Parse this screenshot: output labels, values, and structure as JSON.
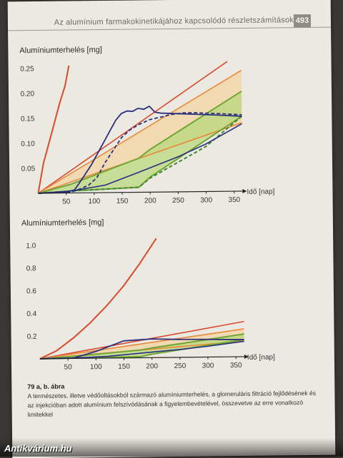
{
  "running_head": {
    "title": "Az alumínium farmakokinetikájához kapcsolódó részletszámítások",
    "page_number": "493"
  },
  "chart_data": [
    {
      "type": "line",
      "ylabel": "Alumíniumterhelés [mg]",
      "xlabel": "Idő [nap]",
      "xlim": [
        0,
        365
      ],
      "ylim": [
        0,
        0.25
      ],
      "xticks": [
        50,
        100,
        150,
        200,
        250,
        300,
        350
      ],
      "yticks": [
        0.05,
        0.1,
        0.15,
        0.2,
        0.25
      ],
      "ytick_labels": [
        "0.05",
        "0.10",
        "0.15",
        "0.20",
        "0.25"
      ],
      "bands": [
        {
          "color": "#f3d3a2",
          "upper": [
            [
              0,
              0
            ],
            [
              365,
              0.242
            ]
          ],
          "lower": [
            [
              0,
              0
            ],
            [
              365,
              0.137
            ]
          ]
        },
        {
          "color": "#b9d77e",
          "upper": [
            [
              0,
              0
            ],
            [
              60,
              0.018
            ],
            [
              180,
              0.068
            ],
            [
              200,
              0.085
            ],
            [
              365,
              0.2
            ]
          ],
          "lower": [
            [
              0,
              0
            ],
            [
              60,
              0.004
            ],
            [
              180,
              0.01
            ],
            [
              200,
              0.03
            ],
            [
              365,
              0.15
            ]
          ]
        }
      ],
      "series": [
        {
          "color": "#d94a2b",
          "width": 2,
          "dash": "",
          "x": [
            0,
            10,
            20,
            30,
            40,
            50,
            57
          ],
          "y": [
            0,
            0.06,
            0.1,
            0.14,
            0.18,
            0.215,
            0.255
          ]
        },
        {
          "color": "#d94a2b",
          "width": 1.6,
          "dash": "",
          "x": [
            0,
            340
          ],
          "y": [
            0,
            0.26
          ]
        },
        {
          "color": "#e8893a",
          "width": 1.6,
          "dash": "",
          "x": [
            0,
            365
          ],
          "y": [
            0,
            0.242
          ]
        },
        {
          "color": "#e8893a",
          "width": 1.6,
          "dash": "",
          "x": [
            0,
            365
          ],
          "y": [
            0,
            0.137
          ]
        },
        {
          "color": "#6fa532",
          "width": 2,
          "dash": "",
          "x": [
            0,
            60,
            180,
            200,
            365
          ],
          "y": [
            0,
            0.018,
            0.068,
            0.085,
            0.2
          ]
        },
        {
          "color": "#6fa532",
          "width": 2,
          "dash": "",
          "x": [
            0,
            60,
            180,
            200,
            365
          ],
          "y": [
            0,
            0.004,
            0.01,
            0.03,
            0.15
          ]
        },
        {
          "color": "#3b8a2a",
          "width": 2,
          "dash": "5,3",
          "x": [
            0,
            60,
            180,
            200,
            300,
            365
          ],
          "y": [
            0,
            0.004,
            0.01,
            0.028,
            0.09,
            0.15
          ]
        },
        {
          "color": "#2b2f7e",
          "width": 1.8,
          "dash": "",
          "x": [
            0,
            50,
            65,
            80,
            95,
            110,
            125,
            140,
            150,
            160,
            170,
            180,
            190,
            200,
            210,
            220,
            240,
            280,
            320,
            365
          ],
          "y": [
            0,
            0.002,
            0.006,
            0.03,
            0.055,
            0.085,
            0.115,
            0.145,
            0.158,
            0.163,
            0.162,
            0.168,
            0.166,
            0.172,
            0.16,
            0.158,
            0.157,
            0.155,
            0.153,
            0.15
          ]
        },
        {
          "color": "#2b2f7e",
          "width": 1.8,
          "dash": "5,3",
          "x": [
            0,
            60,
            75,
            90,
            105,
            120,
            135,
            150,
            165,
            180,
            200,
            220,
            240,
            260,
            280,
            300,
            320,
            365
          ],
          "y": [
            0,
            0.002,
            0.008,
            0.015,
            0.03,
            0.06,
            0.085,
            0.11,
            0.125,
            0.135,
            0.145,
            0.15,
            0.155,
            0.158,
            0.158,
            0.157,
            0.156,
            0.153
          ]
        },
        {
          "color": "#2b2f7e",
          "width": 1.6,
          "dash": "",
          "x": [
            0,
            60,
            120,
            180,
            250,
            300,
            365
          ],
          "y": [
            0,
            0.004,
            0.015,
            0.04,
            0.07,
            0.095,
            0.135
          ]
        }
      ]
    },
    {
      "type": "line",
      "ylabel": "Alumíniumterhelés [mg]",
      "xlabel": "Idő [nap]",
      "xlim": [
        0,
        365
      ],
      "ylim": [
        0,
        1.05
      ],
      "xticks": [
        50,
        100,
        150,
        200,
        250,
        300,
        350
      ],
      "yticks": [
        0.2,
        0.4,
        0.6,
        0.8,
        1.0
      ],
      "ytick_labels": [
        "0.2",
        "0.4",
        "0.6",
        "0.8",
        "1.0"
      ],
      "bands": [
        {
          "color": "#f3d3a2",
          "upper": [
            [
              0,
              0
            ],
            [
              365,
              0.245
            ]
          ],
          "lower": [
            [
              0,
              0
            ],
            [
              365,
              0.137
            ]
          ]
        },
        {
          "color": "#b9d77e",
          "upper": [
            [
              0,
              0
            ],
            [
              60,
              0.018
            ],
            [
              180,
              0.068
            ],
            [
              200,
              0.085
            ],
            [
              365,
              0.2
            ]
          ],
          "lower": [
            [
              0,
              0
            ],
            [
              60,
              0.004
            ],
            [
              180,
              0.01
            ],
            [
              200,
              0.03
            ],
            [
              365,
              0.15
            ]
          ]
        }
      ],
      "series": [
        {
          "color": "#d94a2b",
          "width": 2,
          "dash": "",
          "x": [
            0,
            30,
            60,
            90,
            120,
            150,
            180,
            210
          ],
          "y": [
            0,
            0.07,
            0.18,
            0.31,
            0.46,
            0.63,
            0.83,
            1.05
          ]
        },
        {
          "color": "#d94a2b",
          "width": 1.6,
          "dash": "",
          "x": [
            0,
            365
          ],
          "y": [
            0,
            0.31
          ]
        },
        {
          "color": "#e8893a",
          "width": 1.6,
          "dash": "",
          "x": [
            0,
            365
          ],
          "y": [
            0,
            0.245
          ]
        },
        {
          "color": "#e8893a",
          "width": 1.6,
          "dash": "",
          "x": [
            0,
            365
          ],
          "y": [
            0,
            0.137
          ]
        },
        {
          "color": "#6fa532",
          "width": 2,
          "dash": "",
          "x": [
            0,
            60,
            180,
            200,
            365
          ],
          "y": [
            0,
            0.018,
            0.068,
            0.085,
            0.2
          ]
        },
        {
          "color": "#6fa532",
          "width": 2,
          "dash": "",
          "x": [
            0,
            60,
            180,
            200,
            365
          ],
          "y": [
            0,
            0.004,
            0.01,
            0.03,
            0.15
          ]
        },
        {
          "color": "#2b2f7e",
          "width": 1.8,
          "dash": "",
          "x": [
            0,
            60,
            100,
            150,
            200,
            250,
            300,
            365
          ],
          "y": [
            0,
            0.004,
            0.06,
            0.15,
            0.165,
            0.158,
            0.155,
            0.15
          ]
        },
        {
          "color": "#2b2f7e",
          "width": 1.6,
          "dash": "",
          "x": [
            0,
            60,
            120,
            180,
            250,
            300,
            365
          ],
          "y": [
            0,
            0.004,
            0.015,
            0.04,
            0.07,
            0.095,
            0.135
          ]
        }
      ]
    }
  ],
  "caption": {
    "title": "79 a, b. ábra",
    "text": "A természetes, illetve védőoltásokból származó alumíniumterhelés, a glomeruláris filtráció fejlődésének és az injekcióban adott alumínium felszívódásának a figyelembe­vételével, összevetve az erre vonatkozó limitekkel"
  },
  "watermark": "Antikvárium.hu"
}
